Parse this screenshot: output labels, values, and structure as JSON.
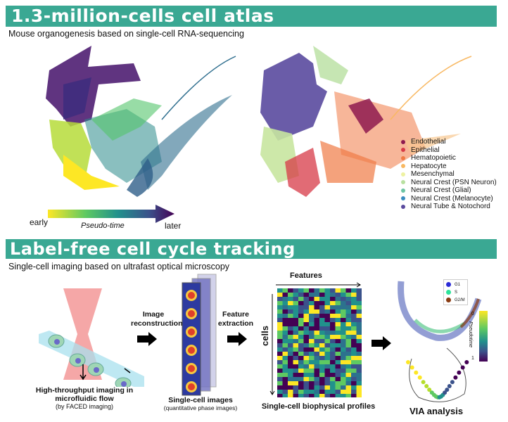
{
  "section1": {
    "title": "1.3-million-cells cell atlas",
    "subtitle": "Mouse organogenesis based on single-cell RNA-sequencing",
    "pseudotime": {
      "early": "early",
      "label": "Pseudo-time",
      "later": "later"
    },
    "legend": [
      {
        "label": "Endothelial",
        "color": "#8e1a4f"
      },
      {
        "label": "Epithelial",
        "color": "#d73a47"
      },
      {
        "label": "Hematopoietic",
        "color": "#f07a45"
      },
      {
        "label": "Hepatocyte",
        "color": "#f8b862"
      },
      {
        "label": "Mesenchymal",
        "color": "#eef2a2"
      },
      {
        "label": "Neural Crest (PSN Neuron)",
        "color": "#b8e0a0"
      },
      {
        "label": "Neural Crest (Glial)",
        "color": "#6cc4a4"
      },
      {
        "label": "Neural Crest (Melanocyte)",
        "color": "#3a8cc0"
      },
      {
        "label": "Neural Tube & Notochord",
        "color": "#5a4a9e"
      }
    ]
  },
  "section2": {
    "title": "Label-free cell cycle tracking",
    "subtitle": "Single-cell imaging based on ultrafast optical microscopy",
    "imaging": {
      "caption_bold": "High-throughput imaging in microfluidic flow",
      "caption_note": "(by FACED imaging)"
    },
    "step1_label": "Image reconstruction",
    "images": {
      "caption_bold": "Single-cell images",
      "caption_note": "(quantitative phase images)"
    },
    "step2_label": "Feature extraction",
    "heatmap": {
      "x_label": "Features",
      "y_label": "cells",
      "caption": "Single-cell biophysical profiles"
    },
    "via": {
      "legend": [
        {
          "label": "G1",
          "color": "#2b2bd6"
        },
        {
          "label": "S",
          "color": "#2de39a"
        },
        {
          "label": "G2/M",
          "color": "#8a3b12"
        }
      ],
      "colorbar_label": "Pseudotime",
      "colorbar_min": "0",
      "colorbar_max": "1",
      "caption": "VIA analysis"
    }
  },
  "colors": {
    "banner": "#3aa893"
  }
}
